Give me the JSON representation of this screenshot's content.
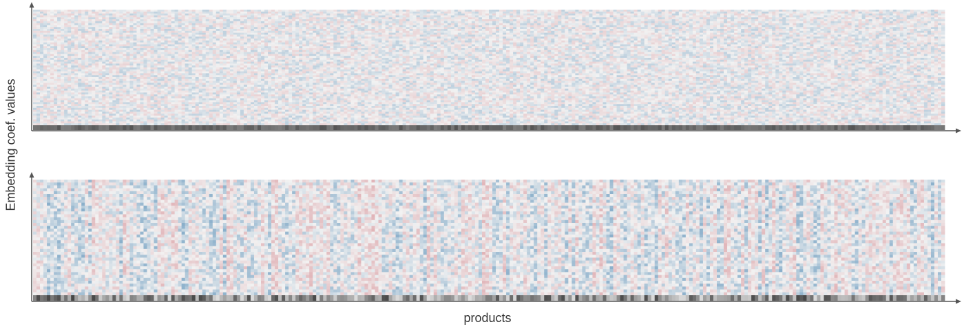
{
  "chart_data": {
    "type": "heatmap",
    "title": "",
    "xlabel": "products",
    "ylabel": "Embedding coef. values",
    "shared_axes": true,
    "panels": [
      {
        "name": "",
        "columns": 264,
        "rows": 60,
        "style": "fine-noise",
        "value_range": [
          -1,
          1
        ],
        "value_spread": 0.18,
        "footer_strip": "uniform-dark"
      },
      {
        "name": "",
        "columns": 264,
        "rows": 40,
        "style": "column-structured",
        "value_range": [
          -1,
          1
        ],
        "value_spread": 0.45,
        "footer_strip": "variable-gray"
      }
    ],
    "colormap": {
      "negative": "#6e9dc0",
      "zero": "#f2f2f2",
      "positive": "#dca3a8",
      "footer": "#5a5a5a"
    },
    "grid": false,
    "legend": "none"
  },
  "colors": {
    "axis": "#555555",
    "text": "#333333"
  }
}
